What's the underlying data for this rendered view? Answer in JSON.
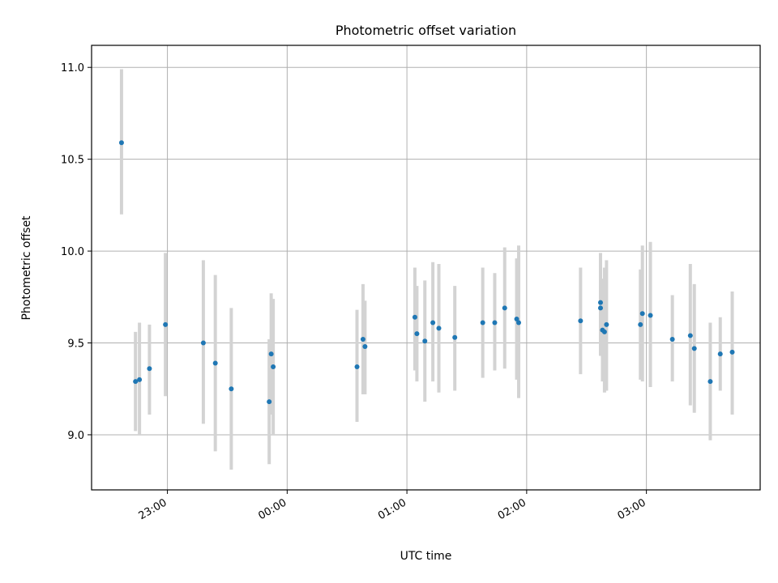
{
  "chart_data": {
    "type": "scatter",
    "title": "Photometric offset variation",
    "xlabel": "UTC time",
    "ylabel": "Photometric offset",
    "x_unit": "UTC time (HH:MM)",
    "xlim": [
      "22:22",
      "03:57"
    ],
    "ylim": [
      8.7,
      11.12
    ],
    "grid": true,
    "x_ticks": [
      "23:00",
      "00:00",
      "01:00",
      "02:00",
      "03:00"
    ],
    "y_ticks": [
      "9.0",
      "9.5",
      "10.0",
      "10.5",
      "11.0"
    ],
    "marker_color": "#1f77b4",
    "errorbar_color": "#d3d3d3",
    "points": [
      {
        "x": "22:37",
        "y": 10.59,
        "ylow": 10.2,
        "yhigh": 10.99
      },
      {
        "x": "22:44",
        "y": 9.29,
        "ylow": 9.02,
        "yhigh": 9.56
      },
      {
        "x": "22:46",
        "y": 9.3,
        "ylow": 9.0,
        "yhigh": 9.61
      },
      {
        "x": "22:51",
        "y": 9.36,
        "ylow": 9.11,
        "yhigh": 9.6
      },
      {
        "x": "22:59",
        "y": 9.6,
        "ylow": 9.21,
        "yhigh": 9.99
      },
      {
        "x": "23:18",
        "y": 9.5,
        "ylow": 9.06,
        "yhigh": 9.95
      },
      {
        "x": "23:24",
        "y": 9.39,
        "ylow": 8.91,
        "yhigh": 9.87
      },
      {
        "x": "23:32",
        "y": 9.25,
        "ylow": 8.81,
        "yhigh": 9.69
      },
      {
        "x": "23:51",
        "y": 9.18,
        "ylow": 8.84,
        "yhigh": 9.52
      },
      {
        "x": "23:52",
        "y": 9.44,
        "ylow": 9.11,
        "yhigh": 9.77
      },
      {
        "x": "23:53",
        "y": 9.37,
        "ylow": 9.0,
        "yhigh": 9.74
      },
      {
        "x": "00:35",
        "y": 9.37,
        "ylow": 9.07,
        "yhigh": 9.68
      },
      {
        "x": "00:38",
        "y": 9.52,
        "ylow": 9.22,
        "yhigh": 9.82
      },
      {
        "x": "00:39",
        "y": 9.48,
        "ylow": 9.22,
        "yhigh": 9.73
      },
      {
        "x": "01:04",
        "y": 9.64,
        "ylow": 9.35,
        "yhigh": 9.91
      },
      {
        "x": "01:05",
        "y": 9.55,
        "ylow": 9.29,
        "yhigh": 9.81
      },
      {
        "x": "01:09",
        "y": 9.51,
        "ylow": 9.18,
        "yhigh": 9.84
      },
      {
        "x": "01:13",
        "y": 9.61,
        "ylow": 9.29,
        "yhigh": 9.94
      },
      {
        "x": "01:16",
        "y": 9.58,
        "ylow": 9.23,
        "yhigh": 9.93
      },
      {
        "x": "01:24",
        "y": 9.53,
        "ylow": 9.24,
        "yhigh": 9.81
      },
      {
        "x": "01:38",
        "y": 9.61,
        "ylow": 9.31,
        "yhigh": 9.91
      },
      {
        "x": "01:44",
        "y": 9.61,
        "ylow": 9.35,
        "yhigh": 9.88
      },
      {
        "x": "01:49",
        "y": 9.69,
        "ylow": 9.36,
        "yhigh": 10.02
      },
      {
        "x": "01:55",
        "y": 9.63,
        "ylow": 9.3,
        "yhigh": 9.96
      },
      {
        "x": "01:56",
        "y": 9.61,
        "ylow": 9.2,
        "yhigh": 10.03
      },
      {
        "x": "02:27",
        "y": 9.62,
        "ylow": 9.33,
        "yhigh": 9.91
      },
      {
        "x": "02:37",
        "y": 9.72,
        "ylow": 9.43,
        "yhigh": 9.99
      },
      {
        "x": "02:37",
        "y": 9.69,
        "ylow": 9.43,
        "yhigh": 9.95
      },
      {
        "x": "02:38",
        "y": 9.57,
        "ylow": 9.29,
        "yhigh": 9.85
      },
      {
        "x": "02:39",
        "y": 9.56,
        "ylow": 9.23,
        "yhigh": 9.91
      },
      {
        "x": "02:40",
        "y": 9.6,
        "ylow": 9.24,
        "yhigh": 9.95
      },
      {
        "x": "02:57",
        "y": 9.6,
        "ylow": 9.3,
        "yhigh": 9.9
      },
      {
        "x": "02:58",
        "y": 9.66,
        "ylow": 9.29,
        "yhigh": 10.03
      },
      {
        "x": "03:02",
        "y": 9.65,
        "ylow": 9.26,
        "yhigh": 10.05
      },
      {
        "x": "03:13",
        "y": 9.52,
        "ylow": 9.29,
        "yhigh": 9.76
      },
      {
        "x": "03:22",
        "y": 9.54,
        "ylow": 9.16,
        "yhigh": 9.93
      },
      {
        "x": "03:24",
        "y": 9.47,
        "ylow": 9.12,
        "yhigh": 9.82
      },
      {
        "x": "03:32",
        "y": 9.29,
        "ylow": 8.97,
        "yhigh": 9.61
      },
      {
        "x": "03:37",
        "y": 9.44,
        "ylow": 9.24,
        "yhigh": 9.64
      },
      {
        "x": "03:43",
        "y": 9.45,
        "ylow": 9.11,
        "yhigh": 9.78
      }
    ]
  }
}
